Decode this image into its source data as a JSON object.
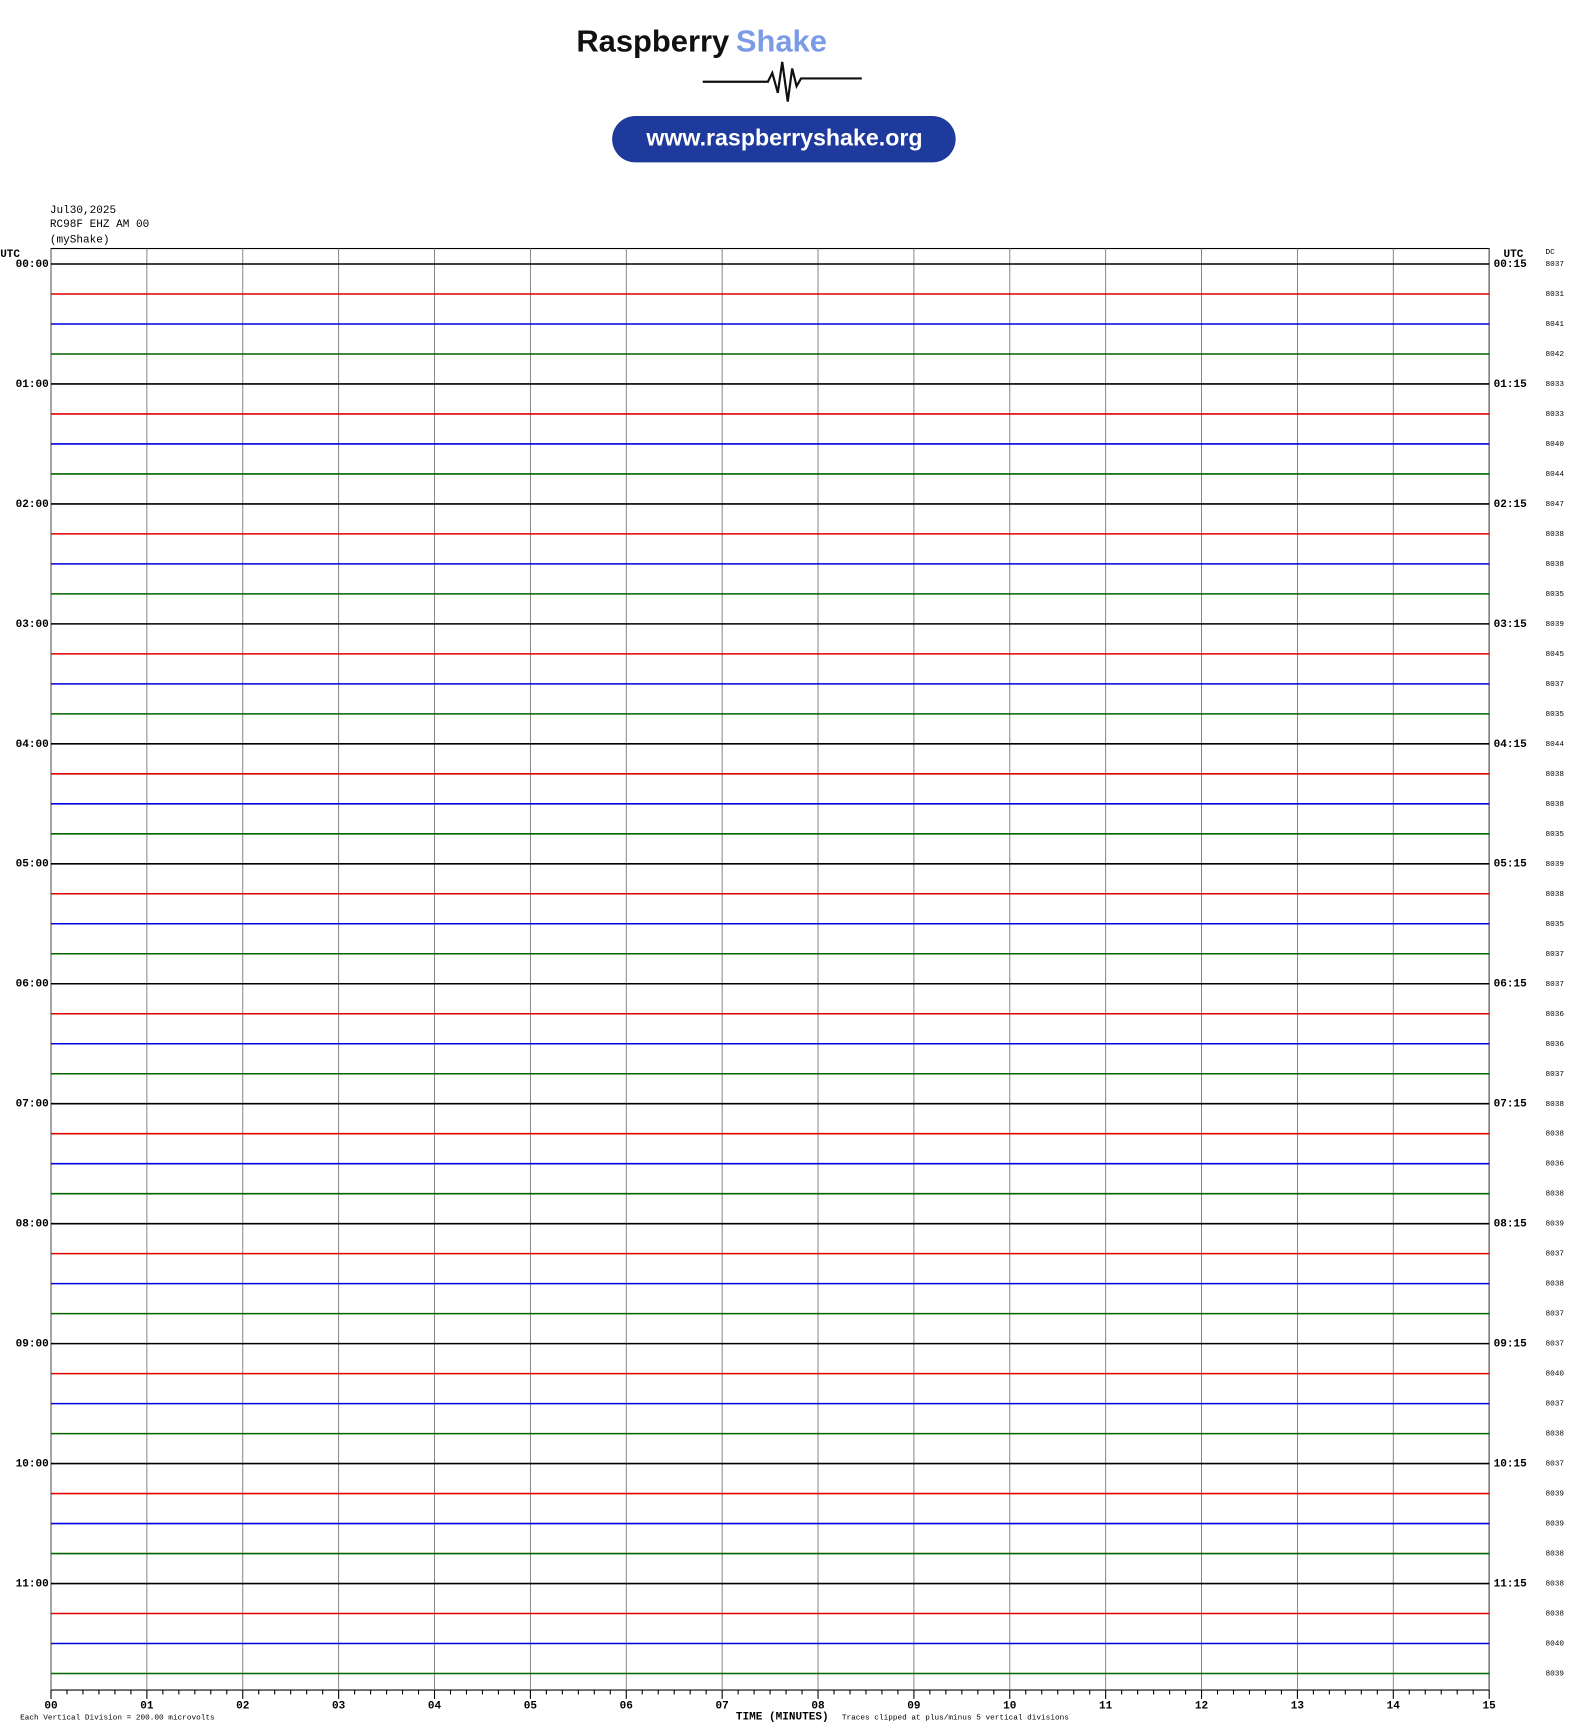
{
  "chart_data": {
    "type": "helicorder",
    "brand": "Raspberry",
    "brand_accent": "Shake",
    "url": "www.raspberryshake.org",
    "date": "Jul30,2025",
    "station": "RC98F EHZ AM 00",
    "source": "(myShake)",
    "left_axis_title": "UTC",
    "right_axis_title": "UTC",
    "dc_title": "DC",
    "x_label": "TIME (MINUTES)",
    "scale_note": "Each Vertical Division =  200.00 microvolts",
    "clip_note": "Traces clipped at plus/minus 5 vertical divisions",
    "xlim": [
      0,
      15
    ],
    "xticks": [
      {
        "value": 0,
        "label": "00"
      },
      {
        "value": 1,
        "label": "01"
      },
      {
        "value": 2,
        "label": "02"
      },
      {
        "value": 3,
        "label": "03"
      },
      {
        "value": 4,
        "label": "04"
      },
      {
        "value": 5,
        "label": "05"
      },
      {
        "value": 6,
        "label": "06"
      },
      {
        "value": 7,
        "label": "07"
      },
      {
        "value": 8,
        "label": "08"
      },
      {
        "value": 9,
        "label": "09"
      },
      {
        "value": 10,
        "label": "10"
      },
      {
        "value": 11,
        "label": "11"
      },
      {
        "value": 12,
        "label": "12"
      },
      {
        "value": 13,
        "label": "13"
      },
      {
        "value": 14,
        "label": "14"
      },
      {
        "value": 15,
        "label": "15"
      }
    ],
    "trace_colors": [
      "#000000",
      "#e00000",
      "#0000e0",
      "#006400"
    ],
    "left_labels": [
      "00:00",
      "01:00",
      "02:00",
      "03:00",
      "04:00",
      "05:00",
      "06:00",
      "07:00",
      "08:00",
      "09:00",
      "10:00",
      "11:00"
    ],
    "right_labels": [
      "00:15",
      "01:15",
      "02:15",
      "03:15",
      "04:15",
      "05:15",
      "06:15",
      "07:15",
      "08:15",
      "09:15",
      "10:15",
      "11:15"
    ],
    "dc": [
      8037,
      8031,
      8041,
      8042,
      8033,
      8033,
      8040,
      8044,
      8047,
      8038,
      8038,
      8035,
      8039,
      8045,
      8037,
      8035,
      8044,
      8038,
      8038,
      8035,
      8039,
      8038,
      8035,
      8037,
      8037,
      8036,
      8036,
      8037,
      8038,
      8038,
      8036,
      8038,
      8039,
      8037,
      8038,
      8037,
      8037,
      8040,
      8037,
      8038,
      8037,
      8039,
      8039,
      8038,
      8038,
      8038,
      8040,
      8039
    ]
  }
}
